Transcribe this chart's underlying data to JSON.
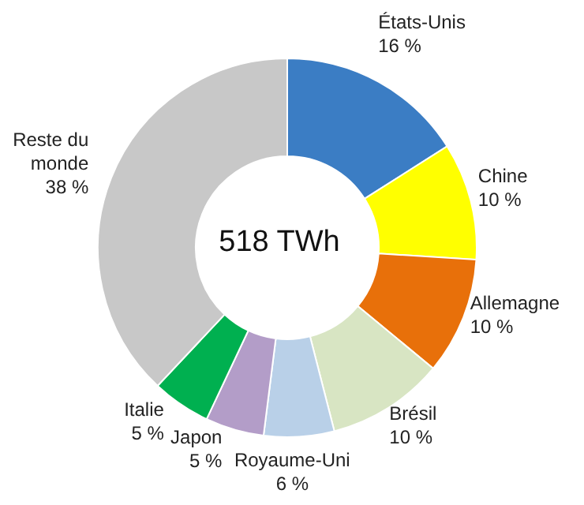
{
  "chart_data": {
    "type": "donut",
    "categories": [
      "États-Unis",
      "Chine",
      "Allemagne",
      "Brésil",
      "Royaume-Uni",
      "Japon",
      "Italie",
      "Reste du monde"
    ],
    "values": [
      16,
      10,
      10,
      10,
      6,
      5,
      5,
      38
    ],
    "value_labels": [
      "16 %",
      "10 %",
      "10 %",
      "10 %",
      "6 %",
      "5 %",
      "5 %",
      "38 %"
    ],
    "colors": [
      "#3b7dc4",
      "#ffff00",
      "#e8700a",
      "#d8e5c3",
      "#b9d0e8",
      "#b39dc8",
      "#00b050",
      "#c8c8c8"
    ],
    "annotations": [
      "518 TWh"
    ],
    "legend": false
  }
}
